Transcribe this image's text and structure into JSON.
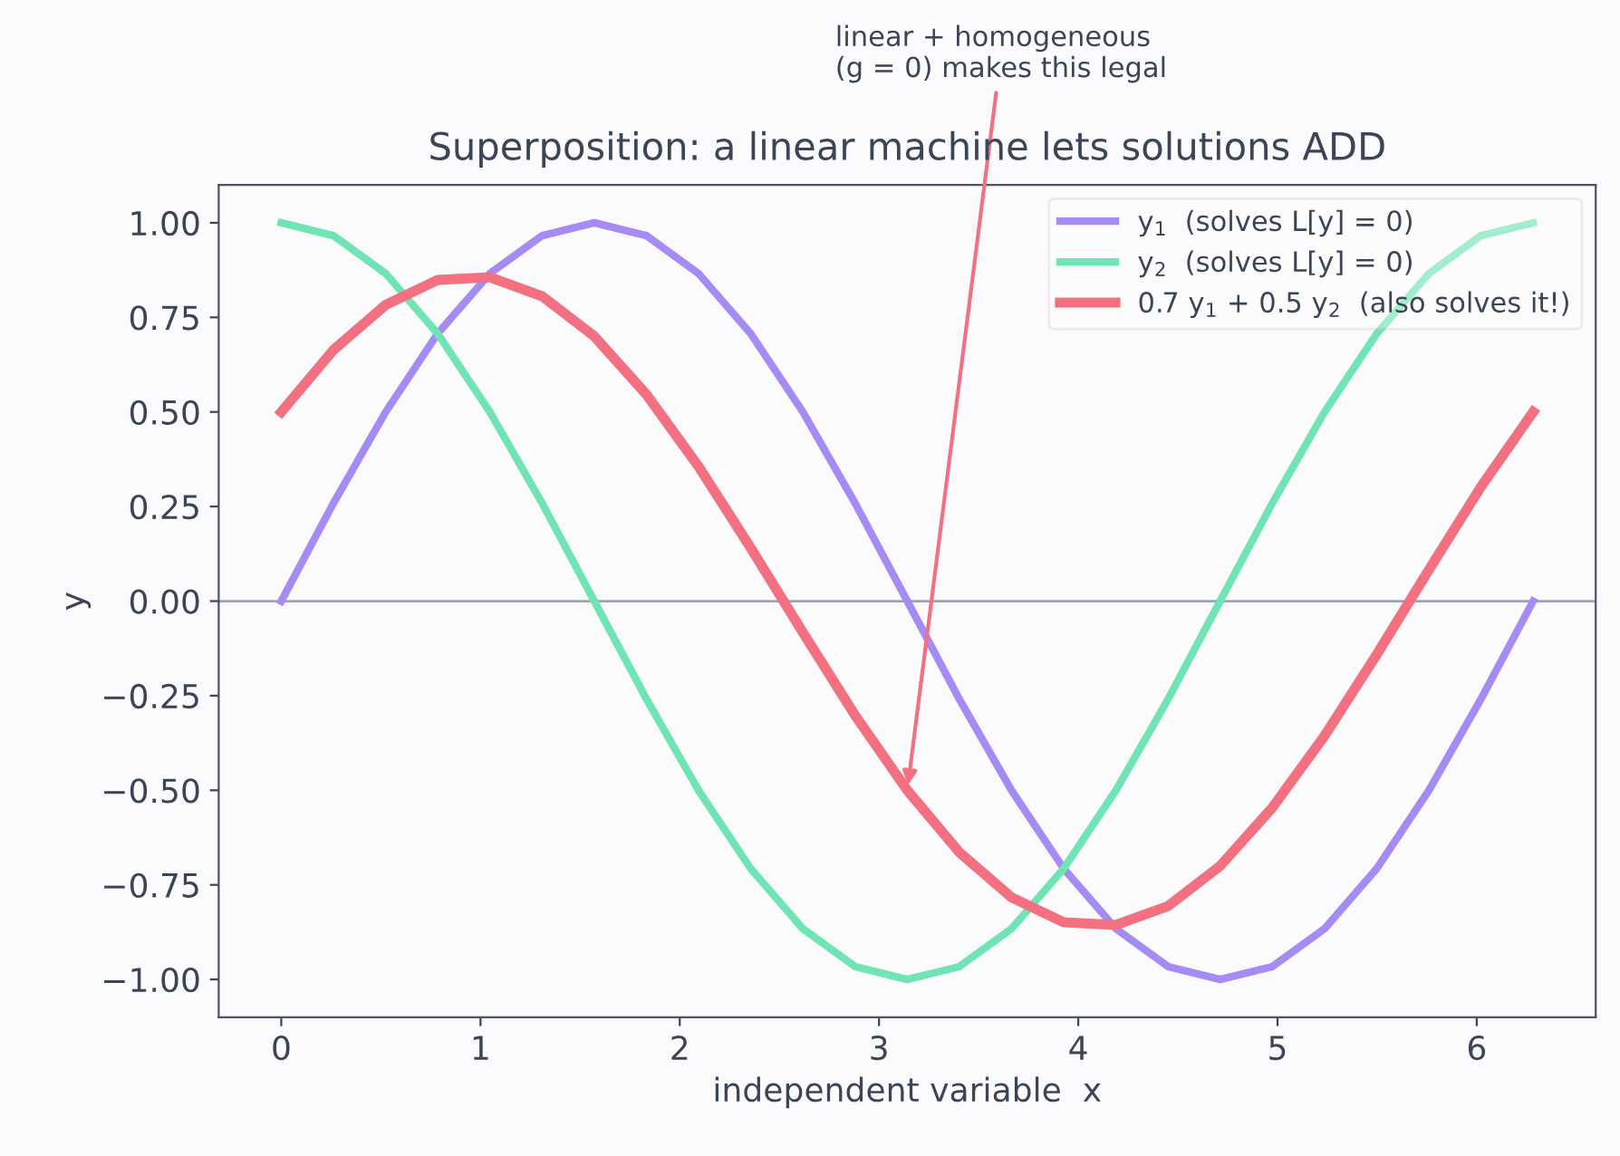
{
  "chart_data": {
    "type": "line",
    "title": "Superposition: a linear machine lets solutions ADD",
    "xlabel": "independent variable  x",
    "ylabel": "y",
    "x": [
      0,
      0.262,
      0.524,
      0.785,
      1.047,
      1.309,
      1.571,
      1.833,
      2.094,
      2.356,
      2.618,
      2.88,
      3.142,
      3.403,
      3.665,
      3.927,
      4.189,
      4.451,
      4.712,
      4.974,
      5.236,
      5.498,
      5.76,
      6.021,
      6.283
    ],
    "series": [
      {
        "name": "y$_{1}$  (solves L[y] = 0)",
        "color": "#a78bf5",
        "values": [
          0,
          0.259,
          0.5,
          0.707,
          0.866,
          0.966,
          1,
          0.966,
          0.866,
          0.707,
          0.5,
          0.259,
          0,
          -0.259,
          -0.5,
          -0.707,
          -0.866,
          -0.966,
          -1,
          -0.966,
          -0.866,
          -0.707,
          -0.5,
          -0.259,
          0
        ]
      },
      {
        "name": "y$_{2}$  (solves L[y] = 0)",
        "color": "#70e4b4",
        "values": [
          1,
          0.966,
          0.866,
          0.707,
          0.5,
          0.259,
          0,
          -0.259,
          -0.5,
          -0.707,
          -0.866,
          -0.966,
          -1,
          -0.966,
          -0.866,
          -0.707,
          -0.5,
          -0.259,
          0,
          0.259,
          0.5,
          0.707,
          0.866,
          0.966,
          1
        ]
      },
      {
        "name": "0.7 y$_{1}$ + 0.5 y$_{2}$  (also solves it!)",
        "color": "#f2707f",
        "values": [
          0.5,
          0.664,
          0.783,
          0.849,
          0.856,
          0.806,
          0.7,
          0.546,
          0.356,
          0.141,
          -0.083,
          -0.302,
          -0.5,
          -0.664,
          -0.783,
          -0.849,
          -0.856,
          -0.806,
          -0.7,
          -0.546,
          -0.356,
          -0.141,
          0.083,
          0.302,
          0.5
        ]
      }
    ],
    "xlim": [
      -0.314,
      6.597
    ],
    "ylim": [
      -1.1,
      1.1
    ],
    "xticks": [
      0,
      1,
      2,
      3,
      4,
      5,
      6
    ],
    "yticks": [
      {
        "value": -1,
        "label": "−1.00"
      },
      {
        "value": -0.75,
        "label": "−0.75"
      },
      {
        "value": -0.5,
        "label": "−0.50"
      },
      {
        "value": -0.25,
        "label": "−0.25"
      },
      {
        "value": 0,
        "label": "0.00"
      },
      {
        "value": 0.25,
        "label": "0.25"
      },
      {
        "value": 0.5,
        "label": "0.50"
      },
      {
        "value": 0.75,
        "label": "0.75"
      },
      {
        "value": 1,
        "label": "1.00"
      }
    ],
    "ref_lines": [
      {
        "axis": "y",
        "value": 0,
        "color": "#9ca3af"
      }
    ],
    "annotations": [
      {
        "text": "linear + homogeneous\n(g = 0) makes this legal",
        "x": 3.142,
        "y": -0.5
      }
    ],
    "legend": "top right",
    "grid": false,
    "marker": "none",
    "line_style": "solid"
  }
}
